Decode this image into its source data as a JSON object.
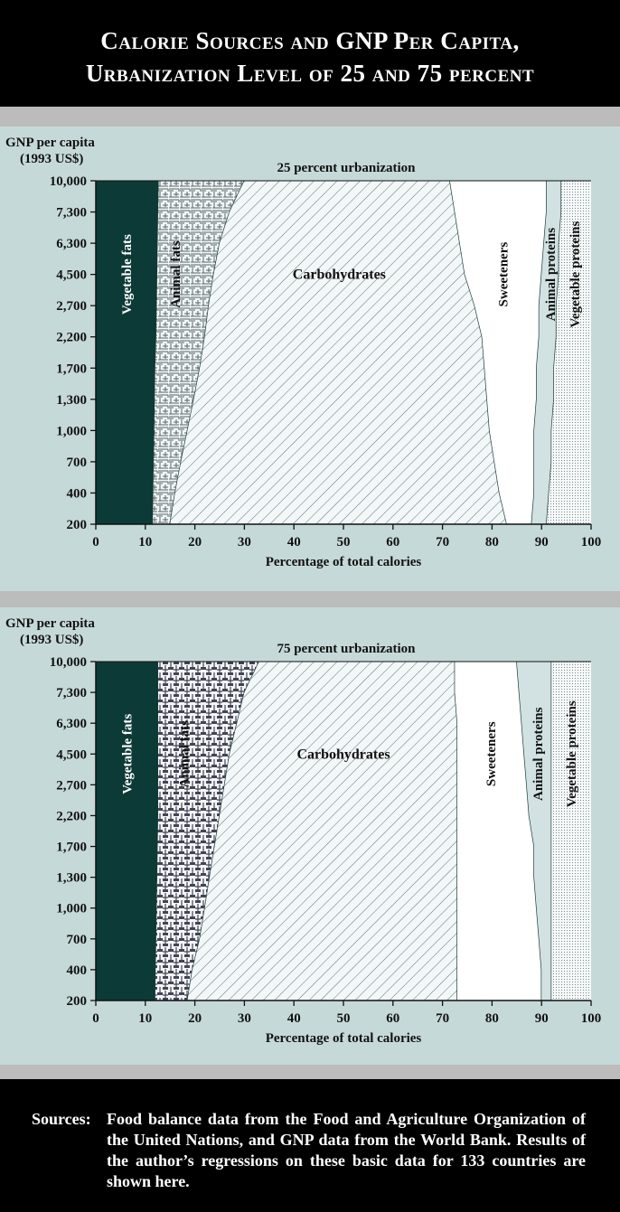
{
  "title": {
    "line1": "Calorie Sources and GNP Per Capita,",
    "line2": "Urbanization Level of 25 and 75 percent"
  },
  "footer": {
    "label": "Sources:",
    "text": "Food balance data from the Food and Agriculture Organization of the United Nations, and GNP data from the World Bank. Results of the author’s regressions on these basic data for 133 countries are shown here."
  },
  "colors": {
    "vegetable_fats": "#0c3a36",
    "background": "#c6d9d9",
    "animal_proteins": "#d2e2e2",
    "line": "#1c3c3a"
  },
  "chart_data": [
    {
      "type": "area",
      "title": "25 percent urbanization",
      "ylabel": "GNP per capita\n(1993 US$)",
      "ylabel_lines": [
        "GNP per capita",
        "(1993 US$)"
      ],
      "xlabel": "Percentage of total calories",
      "xlim": [
        0,
        100
      ],
      "xticks": [
        0,
        10,
        20,
        30,
        40,
        50,
        60,
        70,
        80,
        90,
        100
      ],
      "y_categories": [
        "200",
        "400",
        "700",
        "1,000",
        "1,300",
        "1,700",
        "2,200",
        "2,700",
        "4,500",
        "6,300",
        "7,300",
        "10,000"
      ],
      "stacked_cumulative": true,
      "series": [
        {
          "name": "Vegetable fats",
          "upper_bound": [
            11.5,
            11.6,
            11.7,
            11.8,
            11.9,
            12.0,
            12.2,
            12.3,
            12.4,
            12.5,
            12.6,
            12.7
          ]
        },
        {
          "name": "Animal fats",
          "upper_bound": [
            15.0,
            16.0,
            17.2,
            18.5,
            19.8,
            21.0,
            22.0,
            22.8,
            23.8,
            25.0,
            27.0,
            30.0
          ]
        },
        {
          "name": "Carbohydrates",
          "upper_bound": [
            83.0,
            81.5,
            80.5,
            79.5,
            79.0,
            78.5,
            78.0,
            76.5,
            74.5,
            73.5,
            72.5,
            71.5
          ]
        },
        {
          "name": "Sweeteners",
          "upper_bound": [
            88.0,
            88.5,
            88.5,
            88.5,
            89.0,
            89.0,
            89.5,
            89.5,
            90.0,
            90.5,
            91.0,
            91.0
          ]
        },
        {
          "name": "Animal proteins",
          "upper_bound": [
            91.0,
            91.5,
            92.0,
            92.0,
            92.5,
            92.5,
            93.0,
            93.0,
            93.5,
            93.5,
            94.0,
            94.0
          ]
        },
        {
          "name": "Vegetable proteins",
          "upper_bound": [
            100,
            100,
            100,
            100,
            100,
            100,
            100,
            100,
            100,
            100,
            100,
            100
          ]
        }
      ]
    },
    {
      "type": "area",
      "title": "75 percent urbanization",
      "ylabel": "GNP per capita\n(1993 US$)",
      "ylabel_lines": [
        "GNP per capita",
        "(1993 US$)"
      ],
      "xlabel": "Percentage of total calories",
      "xlim": [
        0,
        100
      ],
      "xticks": [
        0,
        10,
        20,
        30,
        40,
        50,
        60,
        70,
        80,
        90,
        100
      ],
      "y_categories": [
        "200",
        "400",
        "700",
        "1,000",
        "1,300",
        "1,700",
        "2,200",
        "2,700",
        "4,500",
        "6,300",
        "7,300",
        "10,000"
      ],
      "stacked_cumulative": true,
      "series": [
        {
          "name": "Vegetable fats",
          "upper_bound": [
            12.0,
            12.1,
            12.2,
            12.3,
            12.4,
            12.5,
            12.6,
            12.6,
            12.6,
            12.6,
            12.6,
            12.6
          ]
        },
        {
          "name": "Animal fats",
          "upper_bound": [
            18.5,
            19.5,
            21.0,
            22.0,
            23.0,
            24.0,
            25.0,
            26.0,
            27.0,
            28.5,
            30.0,
            33.0
          ]
        },
        {
          "name": "Carbohydrates",
          "upper_bound": [
            73.0,
            73.0,
            73.0,
            73.0,
            73.0,
            73.0,
            73.0,
            73.0,
            73.0,
            73.0,
            72.5,
            72.5
          ]
        },
        {
          "name": "Sweeteners",
          "upper_bound": [
            90.0,
            90.0,
            89.5,
            89.0,
            88.5,
            88.5,
            87.5,
            87.0,
            86.5,
            86.0,
            85.5,
            85.0
          ]
        },
        {
          "name": "Animal proteins",
          "upper_bound": [
            92.0,
            92.0,
            92.0,
            92.0,
            92.0,
            92.0,
            92.0,
            92.0,
            92.0,
            92.0,
            92.0,
            92.0
          ]
        },
        {
          "name": "Vegetable proteins",
          "upper_bound": [
            100,
            100,
            100,
            100,
            100,
            100,
            100,
            100,
            100,
            100,
            100,
            100
          ]
        }
      ]
    }
  ]
}
